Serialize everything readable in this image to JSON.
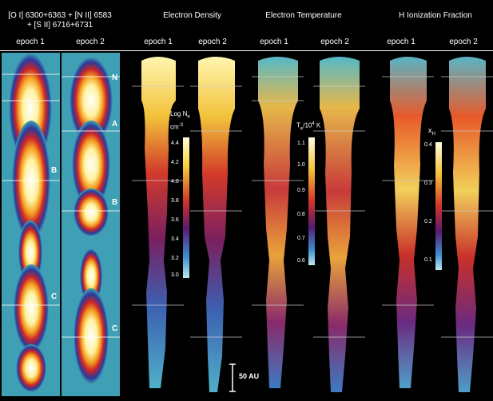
{
  "headers": {
    "emission_line1": "[O I] 6300+6363 + [N II] 6583",
    "emission_line2": "+ [S II] 6716+6731",
    "density": "Electron Density",
    "temperature": "Electron Temperature",
    "ionization": "H Ionization Fraction"
  },
  "epochs": [
    "epoch 1",
    "epoch 2",
    "epoch 1",
    "epoch 2",
    "epoch 1",
    "epoch 2",
    "epoch 1",
    "epoch 2"
  ],
  "knot_labels": {
    "n": "N",
    "a": "A",
    "b": "B",
    "c": "C"
  },
  "colorbars": {
    "density": {
      "label_line1": "Log N",
      "label_sub": "e",
      "label_line2": "cm",
      "label_sup": "-3",
      "ticks": [
        "4.4",
        "4.2",
        "4.0",
        "3.8",
        "3.6",
        "3.4",
        "3.2",
        "3.0"
      ]
    },
    "temperature": {
      "label": "T",
      "label_sub": "e",
      "label_rest": "/10",
      "label_sup": "4",
      "label_unit": " K",
      "ticks": [
        "1.1",
        "1.0",
        "0.9",
        "0.8",
        "0.7",
        "0.6"
      ]
    },
    "ionization": {
      "label": "x",
      "label_sub": "H",
      "ticks": [
        "0.4",
        "0.3",
        "0.2",
        "0.1"
      ]
    }
  },
  "scale_bar": {
    "label": "50 AU"
  }
}
